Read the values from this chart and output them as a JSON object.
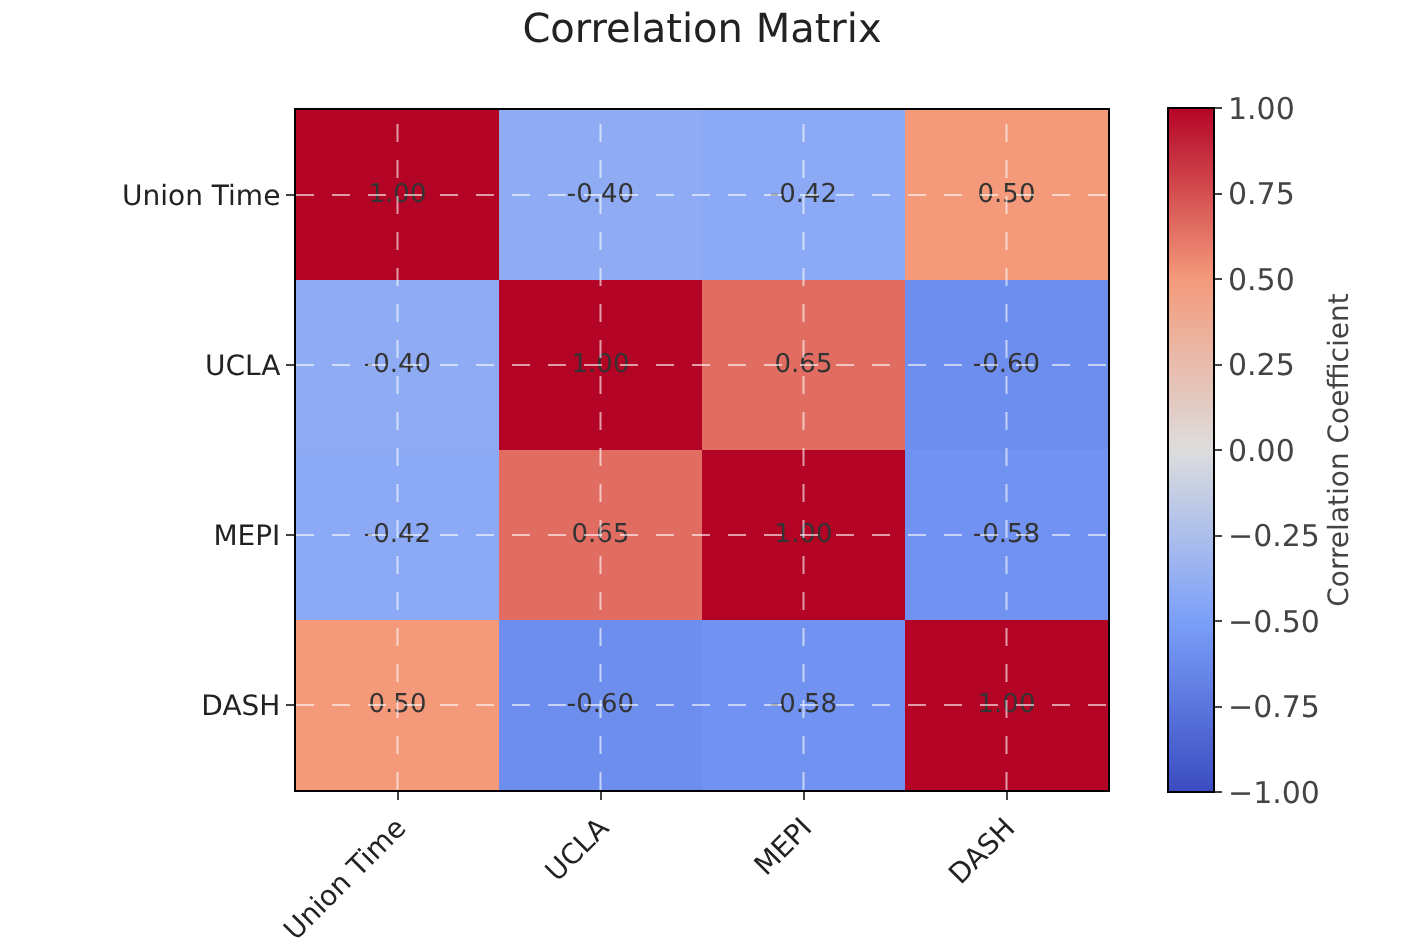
{
  "chart_data": {
    "type": "heatmap",
    "title": "Correlation Matrix",
    "clabel": "Correlation Coefficient",
    "categories": [
      "Union Time",
      "UCLA",
      "MEPI",
      "DASH"
    ],
    "y_categories": [
      "Union Time",
      "UCLA",
      "MEPI",
      "DASH"
    ],
    "cells": [
      [
        1.0,
        -0.4,
        -0.42,
        0.5
      ],
      [
        -0.4,
        1.0,
        0.65,
        -0.6
      ],
      [
        -0.42,
        0.65,
        1.0,
        -0.58
      ],
      [
        0.5,
        -0.6,
        -0.58,
        1.0
      ]
    ],
    "cell_labels": [
      [
        "1.00",
        "-0.40",
        "-0.42",
        "0.50"
      ],
      [
        "-0.40",
        "1.00",
        "0.65",
        "-0.60"
      ],
      [
        "-0.42",
        "0.65",
        "1.00",
        "-0.58"
      ],
      [
        "0.50",
        "-0.60",
        "-0.58",
        "1.00"
      ]
    ],
    "clim": [
      -1,
      1
    ],
    "cticks": [
      {
        "value": -1,
        "label": "−1.00"
      },
      {
        "value": -0.75,
        "label": "−0.75"
      },
      {
        "value": -0.5,
        "label": "−0.50"
      },
      {
        "value": -0.25,
        "label": "−0.25"
      },
      {
        "value": 0,
        "label": "0.00"
      },
      {
        "value": 0.25,
        "label": "0.25"
      },
      {
        "value": 0.5,
        "label": "0.50"
      },
      {
        "value": 0.75,
        "label": "0.75"
      },
      {
        "value": 1,
        "label": "1.00"
      }
    ],
    "grid": true
  }
}
